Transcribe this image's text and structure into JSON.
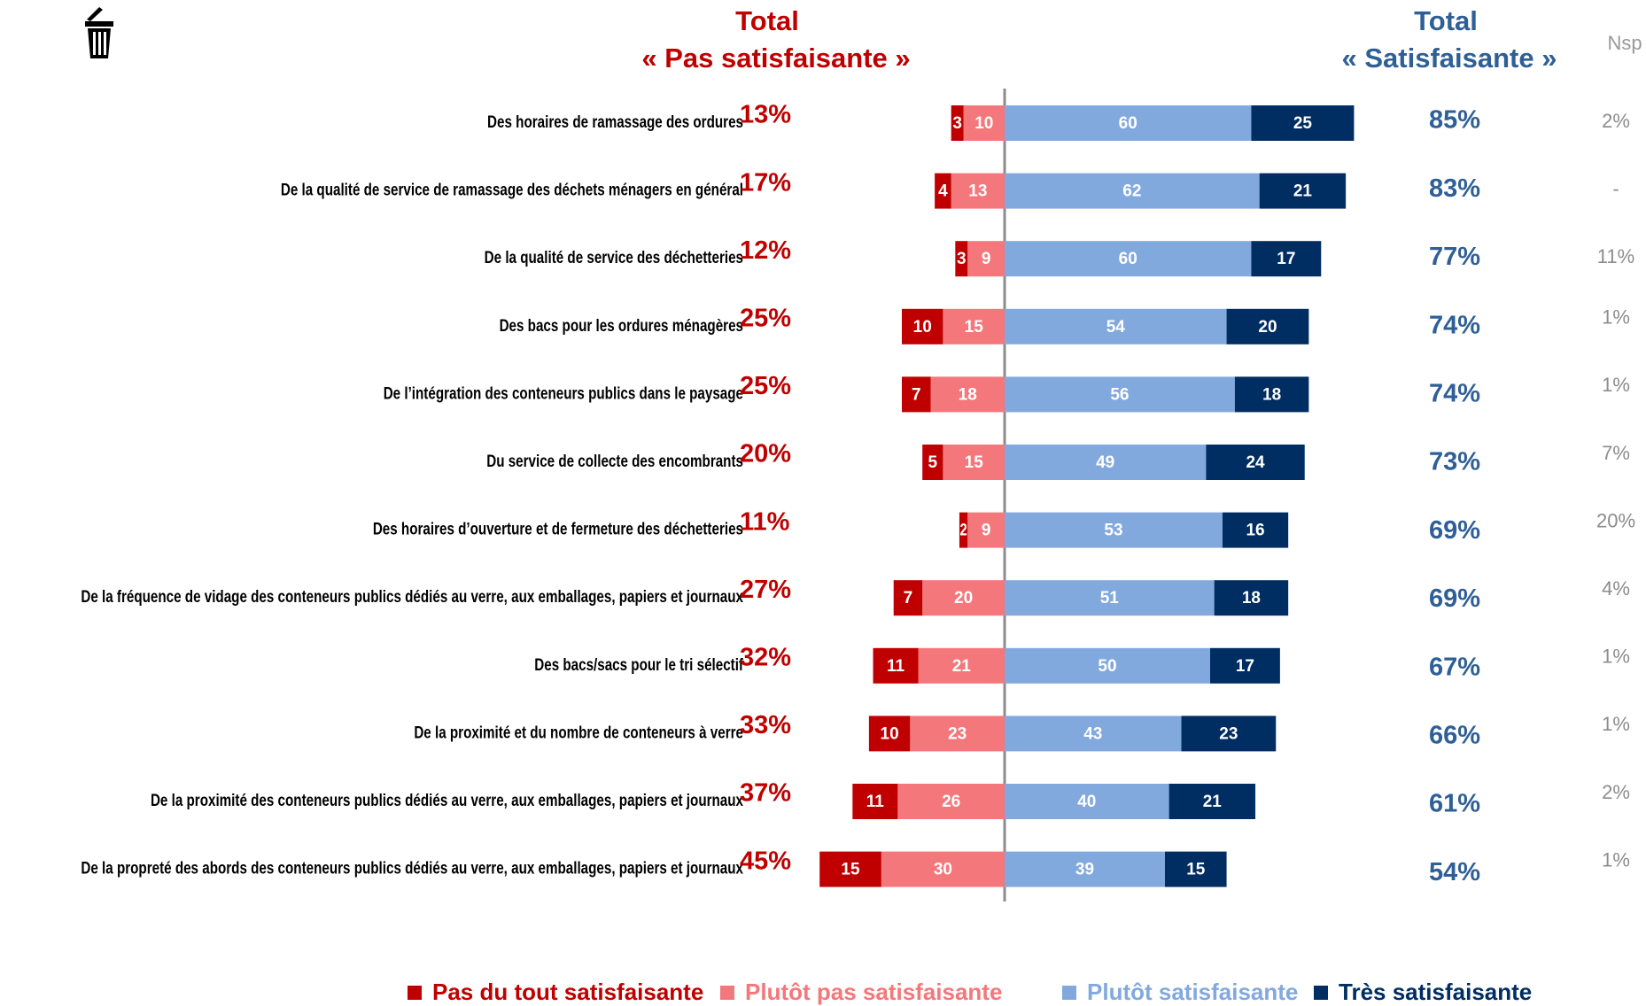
{
  "chart_data": {
    "type": "diverging_bar",
    "header_left": [
      "Total",
      "« Pas satisfaisante »"
    ],
    "header_right": [
      "Total",
      "« Satisfaisante »"
    ],
    "nsp_header": "Nsp",
    "categories": [
      "Des horaires de ramassage des ordures",
      "De la qualité de service de ramassage des déchets ménagers en général",
      "De la qualité de service des déchetteries",
      "Des bacs pour les ordures ménagères",
      "De l’intégration des conteneurs publics dans le paysage",
      "Du service de collecte des encombrants",
      "Des horaires d’ouverture et de fermeture des déchetteries",
      "De la fréquence de vidage des conteneurs publics dédiés au verre, aux emballages, papiers et journaux",
      "Des bacs/sacs pour le tri sélectif",
      "De la proximité et du nombre de conteneurs à verre",
      "De la proximité des conteneurs publics dédiés au verre, aux emballages, papiers et journaux",
      "De la propreté des abords des conteneurs publics dédiés au verre, aux emballages, papiers et journaux"
    ],
    "series": [
      {
        "name": "Pas du tout satisfaisante",
        "color": "#c00000",
        "side": "negative",
        "values": [
          3,
          4,
          3,
          10,
          7,
          5,
          2,
          7,
          11,
          10,
          11,
          15
        ]
      },
      {
        "name": "Plutôt pas satisfaisante",
        "color": "#f4777b",
        "side": "negative",
        "values": [
          10,
          13,
          9,
          15,
          18,
          15,
          9,
          20,
          21,
          23,
          26,
          30
        ]
      },
      {
        "name": "Plutôt satisfaisante",
        "color": "#82a9de",
        "side": "positive",
        "values": [
          60,
          62,
          60,
          54,
          56,
          49,
          53,
          51,
          50,
          43,
          40,
          39
        ]
      },
      {
        "name": "Très satisfaisante",
        "color": "#002d62",
        "side": "positive",
        "values": [
          25,
          21,
          17,
          20,
          18,
          24,
          16,
          18,
          17,
          23,
          21,
          15
        ]
      }
    ],
    "totals_negative": {
      "color": "#c00000",
      "values": [
        13,
        17,
        12,
        25,
        25,
        20,
        11,
        27,
        32,
        33,
        37,
        45
      ],
      "value_labels": [
        "13%",
        "17%",
        "12%",
        "25%",
        "25%",
        "20%",
        "11%",
        "27%",
        "32%",
        "33%",
        "37%",
        "45%"
      ]
    },
    "totals_positive": {
      "color": "#2e5f96",
      "values": [
        85,
        83,
        77,
        74,
        74,
        73,
        69,
        69,
        67,
        66,
        61,
        54
      ],
      "value_labels": [
        "85%",
        "83%",
        "77%",
        "74%",
        "74%",
        "73%",
        "69%",
        "69%",
        "67%",
        "66%",
        "61%",
        "54%"
      ]
    },
    "nsp": {
      "color": "#8c8c8c",
      "values": [
        2,
        null,
        11,
        1,
        1,
        7,
        20,
        4,
        1,
        1,
        2,
        1
      ],
      "value_labels": [
        "2%",
        "-",
        "11%",
        "1%",
        "1%",
        "7%",
        "20%",
        "4%",
        "1%",
        "1%",
        "2%",
        "1%"
      ]
    }
  }
}
